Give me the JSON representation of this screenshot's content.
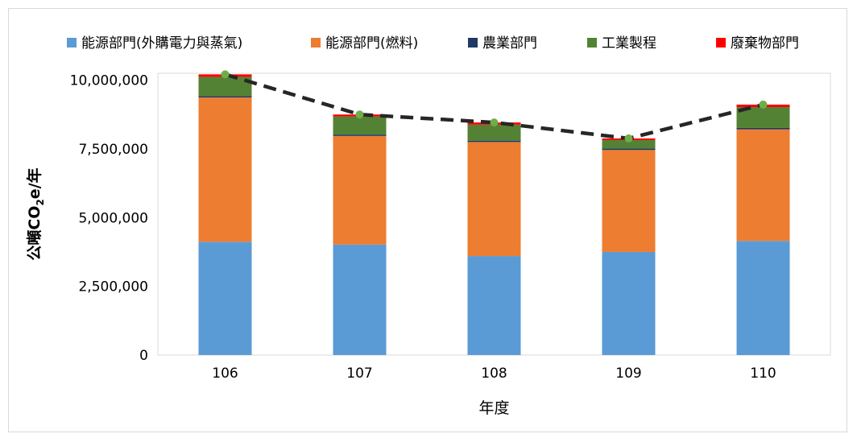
{
  "chart_data": {
    "type": "bar",
    "stacked": true,
    "categories": [
      "106",
      "107",
      "108",
      "109",
      "110"
    ],
    "series": [
      {
        "name": "能源部門(外購電力與蒸氣)",
        "color": "#5b9bd5",
        "values": [
          4120000,
          4020000,
          3600000,
          3750000,
          4150000
        ]
      },
      {
        "name": "能源部門(燃料)",
        "color": "#ed7d31",
        "values": [
          5250000,
          3950000,
          4150000,
          3710000,
          4060000
        ]
      },
      {
        "name": "農業部門",
        "color": "#1f3864",
        "values": [
          50000,
          50000,
          50000,
          50000,
          50000
        ]
      },
      {
        "name": "工業製程",
        "color": "#548235",
        "values": [
          700000,
          660000,
          580000,
          310000,
          760000
        ]
      },
      {
        "name": "廢棄物部門",
        "color": "#ff0000",
        "values": [
          90000,
          70000,
          80000,
          60000,
          90000
        ]
      }
    ],
    "total_line": {
      "values": [
        10210000,
        8750000,
        8460000,
        7880000,
        9110000
      ],
      "line_color": "#262626",
      "marker_color": "#70ad47",
      "style": "dashed"
    },
    "xlabel": "年度",
    "ylabel_parts": {
      "main": "公噸CO",
      "sub": "2",
      "tail": "e/年"
    },
    "ylim": [
      0,
      10000000
    ],
    "y_ticks": [
      0,
      2500000,
      5000000,
      7500000,
      10000000
    ],
    "y_tick_labels": [
      "0",
      "2,500,000",
      "5,000,000",
      "7,500,000",
      "10,000,000"
    ],
    "grid": false,
    "legend_position": "top"
  }
}
